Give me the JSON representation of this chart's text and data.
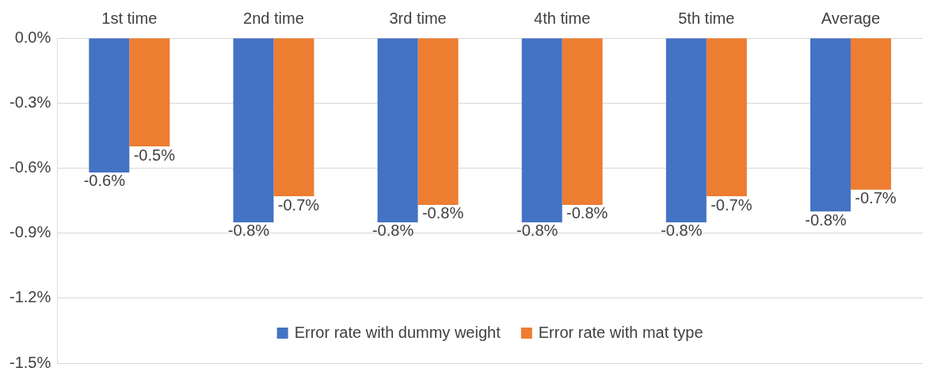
{
  "chart_data": {
    "type": "bar",
    "categories": [
      "1st time",
      "2nd time",
      "3rd time",
      "4th time",
      "5th time",
      "Average"
    ],
    "series": [
      {
        "name": "Error rate with dummy weight",
        "color": "#4472c4",
        "values": [
          -0.62,
          -0.85,
          -0.85,
          -0.85,
          -0.85,
          -0.8
        ],
        "value_labels": [
          "-0.6%",
          "-0.8%",
          "-0.8%",
          "-0.8%",
          "-0.8%",
          "-0.8%"
        ]
      },
      {
        "name": "Error rate with mat type",
        "color": "#ed7d31",
        "values": [
          -0.5,
          -0.73,
          -0.77,
          -0.77,
          -0.73,
          -0.7
        ],
        "value_labels": [
          "-0.5%",
          "-0.7%",
          "-0.8%",
          "-0.8%",
          "-0.7%",
          "-0.7%"
        ]
      }
    ],
    "ylim": [
      -1.5,
      0
    ],
    "yticks": [
      {
        "value": 0,
        "label": "0.0%"
      },
      {
        "value": -0.3,
        "label": "-0.3%"
      },
      {
        "value": -0.6,
        "label": "-0.6%"
      },
      {
        "value": -0.9,
        "label": "-0.9%"
      },
      {
        "value": -1.2,
        "label": "-1.2%"
      },
      {
        "value": -1.5,
        "label": "-1.5%"
      }
    ],
    "grid": "y",
    "legend": "bottom"
  }
}
